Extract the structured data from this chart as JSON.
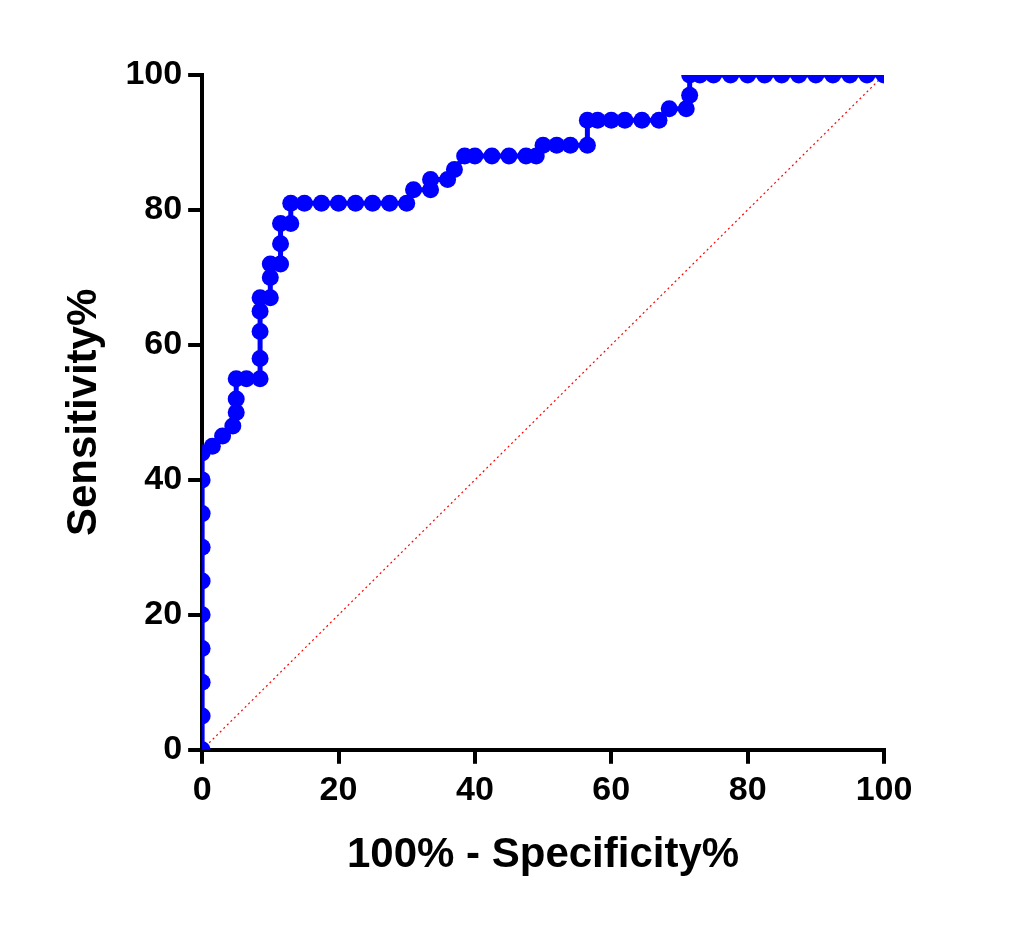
{
  "chart_data": {
    "type": "line",
    "xlabel": "100% - Specificity%",
    "ylabel": "Sensitivity%",
    "xlim": [
      0,
      100
    ],
    "xticks": [
      0,
      20,
      40,
      60,
      80,
      100
    ],
    "ylim": [
      0,
      100
    ],
    "yticks": [
      0,
      20,
      40,
      60,
      80,
      100
    ],
    "grid": false,
    "legend": false,
    "series": [
      {
        "color": "#0000ff",
        "marker": "circle",
        "line_style": "solid",
        "x": [
          0,
          0,
          0,
          0,
          0,
          0,
          0,
          0,
          0,
          0,
          1.5,
          3,
          4.5,
          5,
          5,
          5,
          6.5,
          8.5,
          8.5,
          8.5,
          8.5,
          8.5,
          10,
          10,
          10,
          11.5,
          11.5,
          11.5,
          13,
          13,
          15,
          17.5,
          20,
          22.5,
          25,
          27.5,
          30,
          31,
          33.5,
          33.5,
          36,
          37,
          38.5,
          40,
          42.5,
          45,
          47.5,
          49,
          50,
          52,
          54,
          56.5,
          56.5,
          58,
          60,
          62,
          64.5,
          67,
          68.5,
          71,
          71.5,
          71.5,
          73,
          75,
          77.5,
          80,
          82.5,
          85,
          87.5,
          90,
          92.5,
          95,
          97.5,
          100
        ],
        "values": [
          0,
          5,
          10,
          15,
          20,
          25,
          30,
          35,
          40,
          44,
          45,
          46.5,
          48,
          50,
          52,
          55,
          55,
          55,
          58,
          62,
          65,
          67,
          67,
          70,
          72,
          72,
          75,
          78,
          78,
          81,
          81,
          81,
          81,
          81,
          81,
          81,
          81,
          83,
          83,
          84.5,
          84.5,
          86,
          88,
          88,
          88,
          88,
          88,
          88,
          89.6,
          89.6,
          89.6,
          89.6,
          93.3,
          93.3,
          93.3,
          93.3,
          93.3,
          93.3,
          95,
          95,
          97,
          100,
          100,
          100,
          100,
          100,
          100,
          100,
          100,
          100,
          100,
          100,
          100,
          100
        ]
      },
      {
        "color": "#ff0000",
        "marker": "none",
        "line_style": "dotted",
        "type": "line",
        "x": [
          0,
          100
        ],
        "values": [
          0,
          100
        ]
      }
    ]
  }
}
